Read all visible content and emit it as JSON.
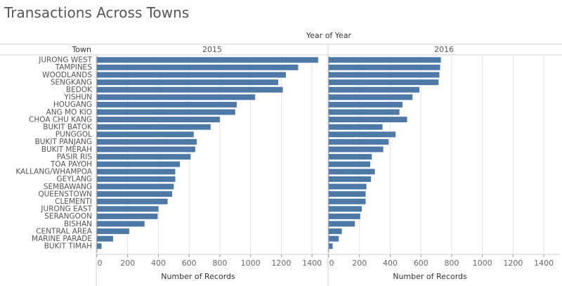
{
  "title": "Transactions Across Towns",
  "chart_data": {
    "type": "bar",
    "orientation": "horizontal",
    "column_header": "Year of Year",
    "row_header": "Town",
    "xlabel": "Number of Records",
    "xlim": [
      0,
      1500
    ],
    "ticks": [
      0,
      200,
      400,
      600,
      800,
      1000,
      1200,
      1400
    ],
    "grid": true,
    "bar_color": "#4e79a7",
    "categories": [
      "JURONG WEST",
      "TAMPINES",
      "WOODLANDS",
      "SENGKANG",
      "BEDOK",
      "YISHUN",
      "HOUGANG",
      "ANG MO KIO",
      "CHOA CHU KANG",
      "BUKIT BATOK",
      "PUNGGOL",
      "BUKIT PANJANG",
      "BUKIT MERAH",
      "PASIR RIS",
      "TOA PAYOH",
      "KALLANG/WHAMPOA",
      "GEYLANG",
      "SEMBAWANG",
      "QUEENSTOWN",
      "CLEMENTI",
      "JURONG EAST",
      "SERANGOON",
      "BISHAN",
      "CENTRAL AREA",
      "MARINE PARADE",
      "BUKIT TIMAH"
    ],
    "series": [
      {
        "name": "2015",
        "values": [
          1440,
          1310,
          1230,
          1180,
          1210,
          1030,
          910,
          900,
          800,
          740,
          630,
          650,
          640,
          610,
          540,
          510,
          510,
          500,
          490,
          460,
          400,
          395,
          310,
          210,
          105,
          30
        ]
      },
      {
        "name": "2016",
        "values": [
          730,
          725,
          720,
          715,
          590,
          545,
          480,
          460,
          510,
          350,
          435,
          390,
          355,
          280,
          270,
          300,
          275,
          245,
          240,
          240,
          215,
          205,
          170,
          85,
          65,
          25
        ]
      }
    ]
  }
}
